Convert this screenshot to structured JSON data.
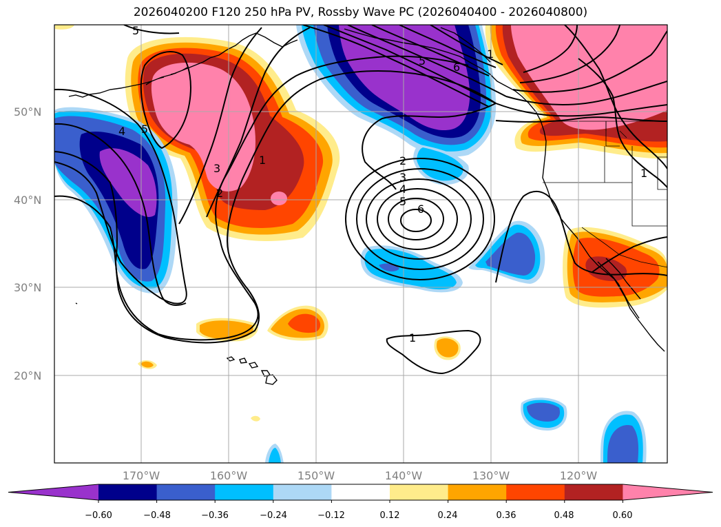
{
  "title": "2026040200 F120 250 hPa PV, Rossby Wave PC (2026040400 - 2026040800)",
  "map": {
    "lat_labels": [
      "50°N",
      "40°N",
      "30°N",
      "20°N"
    ],
    "lon_labels": [
      "170°W",
      "160°W",
      "150°W",
      "140°W",
      "130°W",
      "120°W"
    ],
    "gridlines": true
  },
  "contours": {
    "labels": [
      "5",
      "5",
      "5",
      "6",
      "1",
      "4",
      "3",
      "2",
      "1",
      "2",
      "3",
      "4",
      "5",
      "6",
      "1",
      "1"
    ]
  },
  "colorbar": {
    "ticks": [
      "−0.60",
      "−0.48",
      "−0.36",
      "−0.24",
      "−0.12",
      "0.12",
      "0.24",
      "0.36",
      "0.48",
      "0.60"
    ],
    "colors": [
      "#9932CC",
      "#00008B",
      "#3A5FCD",
      "#00BFFF",
      "#ADD8F6",
      "#FFFFFF",
      "#FFEC8B",
      "#FFA500",
      "#FF4500",
      "#B22222",
      "#FF82AB"
    ]
  }
}
